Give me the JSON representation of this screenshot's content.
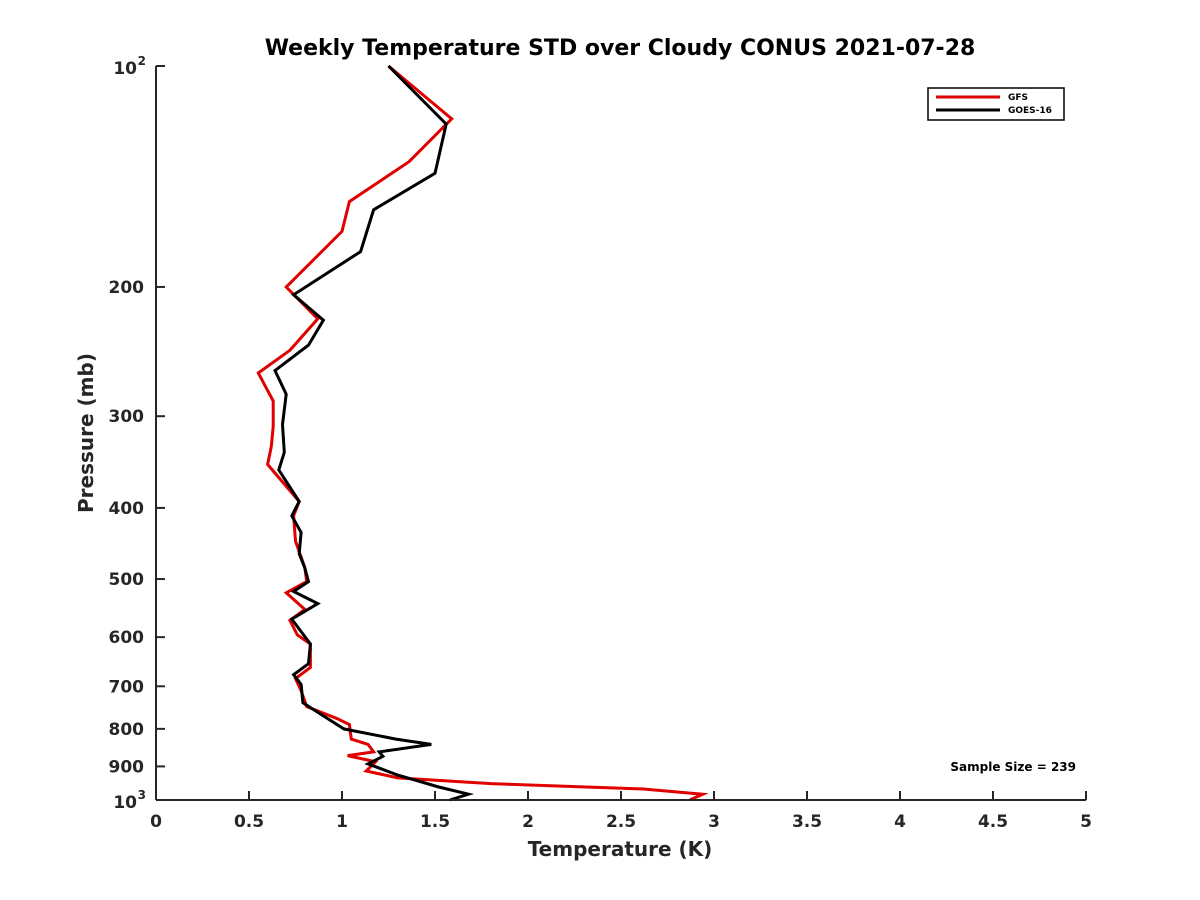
{
  "chart_data": {
    "type": "line",
    "title": "Weekly Temperature STD over Cloudy CONUS 2021-07-28",
    "xlabel": "Temperature (K)",
    "ylabel": "Pressure (mb)",
    "xlim": [
      0,
      5
    ],
    "ylim": [
      100,
      1000
    ],
    "y_scale": "log",
    "y_reversed": true,
    "grid": false,
    "legend_position": "top-right",
    "x_ticks": [
      0,
      0.5,
      1,
      1.5,
      2,
      2.5,
      3,
      3.5,
      4,
      4.5,
      5
    ],
    "x_tick_labels": [
      "0",
      "0.5",
      "1",
      "1.5",
      "2",
      "2.5",
      "3",
      "3.5",
      "4",
      "4.5",
      "5"
    ],
    "y_ticks": [
      {
        "value": 100,
        "base": "10",
        "exp": "2"
      },
      {
        "value": 200,
        "label": "200"
      },
      {
        "value": 300,
        "label": "300"
      },
      {
        "value": 400,
        "label": "400"
      },
      {
        "value": 500,
        "label": "500"
      },
      {
        "value": 600,
        "label": "600"
      },
      {
        "value": 700,
        "label": "700"
      },
      {
        "value": 800,
        "label": "800"
      },
      {
        "value": 900,
        "label": "900"
      },
      {
        "value": 1000,
        "base": "10",
        "exp": "3"
      }
    ],
    "annotation": "Sample Size = 239",
    "series": [
      {
        "name": "GFS",
        "color": "#e00000",
        "points": [
          [
            1.25,
            100
          ],
          [
            1.59,
            118
          ],
          [
            1.36,
            135
          ],
          [
            1.04,
            153
          ],
          [
            1.0,
            168
          ],
          [
            0.7,
            200
          ],
          [
            0.87,
            221
          ],
          [
            0.72,
            244
          ],
          [
            0.55,
            262
          ],
          [
            0.63,
            286
          ],
          [
            0.63,
            310
          ],
          [
            0.62,
            330
          ],
          [
            0.6,
            349
          ],
          [
            0.77,
            392
          ],
          [
            0.74,
            410
          ],
          [
            0.75,
            444
          ],
          [
            0.8,
            482
          ],
          [
            0.81,
            504
          ],
          [
            0.7,
            522
          ],
          [
            0.8,
            550
          ],
          [
            0.72,
            569
          ],
          [
            0.76,
            596
          ],
          [
            0.83,
            613
          ],
          [
            0.83,
            660
          ],
          [
            0.75,
            683
          ],
          [
            0.78,
            710
          ],
          [
            0.81,
            746
          ],
          [
            0.97,
            774
          ],
          [
            1.04,
            789
          ],
          [
            1.05,
            826
          ],
          [
            1.14,
            840
          ],
          [
            1.17,
            860
          ],
          [
            1.03,
            870
          ],
          [
            1.18,
            887
          ],
          [
            1.13,
            913
          ],
          [
            1.3,
            933
          ],
          [
            1.8,
            950
          ],
          [
            2.62,
            966
          ],
          [
            2.94,
            982
          ],
          [
            2.87,
            1000
          ]
        ]
      },
      {
        "name": "GOES-16",
        "color": "#000000",
        "points": [
          [
            1.25,
            100
          ],
          [
            1.56,
            120
          ],
          [
            1.5,
            140
          ],
          [
            1.17,
            157
          ],
          [
            1.1,
            179
          ],
          [
            0.74,
            205
          ],
          [
            0.9,
            222
          ],
          [
            0.82,
            240
          ],
          [
            0.64,
            260
          ],
          [
            0.7,
            280
          ],
          [
            0.68,
            308
          ],
          [
            0.69,
            336
          ],
          [
            0.66,
            355
          ],
          [
            0.77,
            392
          ],
          [
            0.73,
            410
          ],
          [
            0.78,
            432
          ],
          [
            0.77,
            462
          ],
          [
            0.8,
            483
          ],
          [
            0.82,
            504
          ],
          [
            0.74,
            520
          ],
          [
            0.87,
            540
          ],
          [
            0.73,
            567
          ],
          [
            0.83,
            613
          ],
          [
            0.82,
            652
          ],
          [
            0.74,
            675
          ],
          [
            0.78,
            696
          ],
          [
            0.79,
            737
          ],
          [
            0.92,
            774
          ],
          [
            1.01,
            800
          ],
          [
            1.29,
            826
          ],
          [
            1.48,
            840
          ],
          [
            1.2,
            860
          ],
          [
            1.22,
            872
          ],
          [
            1.14,
            893
          ],
          [
            1.3,
            925
          ],
          [
            1.52,
            960
          ],
          [
            1.68,
            982
          ],
          [
            1.58,
            1000
          ]
        ]
      }
    ]
  }
}
